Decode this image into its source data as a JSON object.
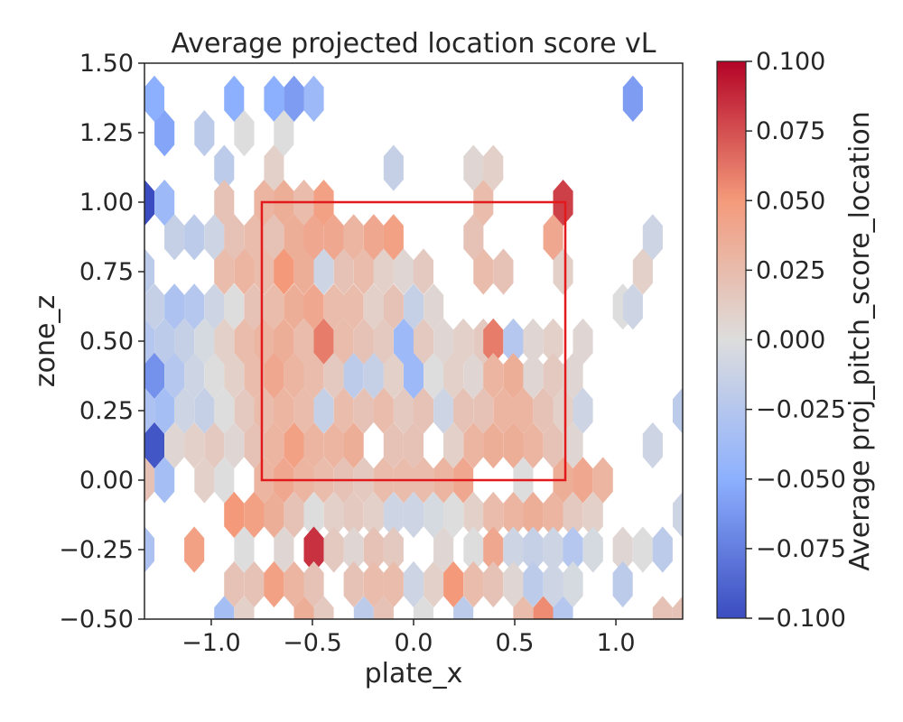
{
  "chart_data": {
    "type": "heatmap",
    "subtype": "hexbin",
    "title": "Average projected location score vL",
    "xlabel": "plate_x",
    "ylabel": "zone_z",
    "xlim": [
      -1.33,
      1.33
    ],
    "ylim": [
      -0.5,
      1.5
    ],
    "grid": false,
    "x_ticks": [
      -1.0,
      -0.5,
      0.0,
      0.5,
      1.0
    ],
    "x_tick_labels": [
      "−1.0",
      "−0.5",
      "0.0",
      "0.5",
      "1.0"
    ],
    "y_ticks": [
      1.5,
      1.25,
      1.0,
      0.75,
      0.5,
      0.25,
      0.0,
      -0.25,
      -0.5
    ],
    "y_tick_labels": [
      "1.50",
      "1.25",
      "1.00",
      "0.75",
      "0.50",
      "0.25",
      "0.00",
      "−0.25",
      "−0.50"
    ],
    "colorbar": {
      "label": "Average proj_pitch_score_location",
      "range": [
        -0.1,
        0.1
      ],
      "ticks": [
        0.1,
        0.075,
        0.05,
        0.025,
        0.0,
        -0.025,
        -0.05,
        -0.075,
        -0.1
      ],
      "tick_labels": [
        "0.100",
        "0.075",
        "0.050",
        "0.025",
        "0.000",
        "−0.025",
        "−0.050",
        "−0.075",
        "−0.100"
      ],
      "colormap": "coolwarm"
    },
    "strike_zone": {
      "x": [
        -0.75,
        0.75
      ],
      "z": [
        0.0,
        1.0
      ],
      "color": "#e31a1c"
    },
    "hex_grid": {
      "dx": 0.0985,
      "dz": 0.1248,
      "x0": -1.33,
      "z0": -0.5
    },
    "rows": [
      {
        "z": 1.372,
        "cells": [
          [
            -1.281,
            -0.05
          ],
          [
            -0.887,
            -0.05
          ],
          [
            -0.69,
            -0.05
          ],
          [
            -0.591,
            -0.06
          ],
          [
            -0.493,
            -0.04
          ],
          [
            1.084,
            -0.06
          ]
        ]
      },
      {
        "z": 1.248,
        "cells": [
          [
            -1.231,
            -0.055
          ],
          [
            -1.034,
            -0.02
          ],
          [
            -0.837,
            0.0
          ],
          [
            -0.641,
            0.0
          ]
        ]
      },
      {
        "z": 1.123,
        "cells": [
          [
            -0.936,
            -0.02
          ],
          [
            -0.69,
            0.01
          ],
          [
            -0.099,
            -0.015
          ],
          [
            0.296,
            0.005
          ],
          [
            0.394,
            0.01
          ]
        ]
      },
      {
        "z": 0.998,
        "cells": [
          [
            -1.33,
            -0.1
          ],
          [
            -1.231,
            -0.04
          ],
          [
            -0.936,
            0.02
          ],
          [
            -0.739,
            0.03
          ],
          [
            -0.641,
            0.035
          ],
          [
            -0.542,
            0.025
          ],
          [
            -0.444,
            0.045
          ],
          [
            0.345,
            0.025
          ],
          [
            0.739,
            0.08
          ]
        ]
      },
      {
        "z": 0.874,
        "cells": [
          [
            -1.182,
            -0.015
          ],
          [
            -1.084,
            -0.02
          ],
          [
            -0.985,
            -0.01
          ],
          [
            -0.887,
            0.02
          ],
          [
            -0.788,
            0.025
          ],
          [
            -0.69,
            0.02
          ],
          [
            -0.591,
            0.035
          ],
          [
            -0.493,
            0.04
          ],
          [
            -0.394,
            0.04
          ],
          [
            -0.296,
            0.03
          ],
          [
            -0.197,
            0.04
          ],
          [
            -0.099,
            0.045
          ],
          [
            0.296,
            0.02
          ],
          [
            0.69,
            0.04
          ],
          [
            1.182,
            -0.01
          ]
        ]
      },
      {
        "z": 0.75,
        "cells": [
          [
            -1.33,
            -0.02
          ],
          [
            -0.936,
            0.025
          ],
          [
            -0.837,
            0.03
          ],
          [
            -0.739,
            0.025
          ],
          [
            -0.641,
            0.05
          ],
          [
            -0.542,
            0.035
          ],
          [
            -0.444,
            -0.01
          ],
          [
            -0.345,
            0.02
          ],
          [
            -0.246,
            0.025
          ],
          [
            -0.148,
            0.01
          ],
          [
            -0.049,
            0.005
          ],
          [
            0.049,
            0.015
          ],
          [
            0.345,
            0.025
          ],
          [
            0.444,
            0.02
          ],
          [
            0.739,
            0.01
          ],
          [
            1.133,
            0.01
          ]
        ]
      },
      {
        "z": 0.624,
        "cells": [
          [
            -1.281,
            -0.015
          ],
          [
            -1.182,
            -0.03
          ],
          [
            -1.084,
            -0.025
          ],
          [
            -0.985,
            -0.01
          ],
          [
            -0.887,
            0.0
          ],
          [
            -0.788,
            0.02
          ],
          [
            -0.69,
            0.025
          ],
          [
            -0.591,
            0.035
          ],
          [
            -0.493,
            0.04
          ],
          [
            -0.394,
            0.025
          ],
          [
            -0.296,
            0.025
          ],
          [
            -0.197,
            0.01
          ],
          [
            -0.099,
            0.02
          ],
          [
            0.0,
            -0.015
          ],
          [
            0.099,
            0.005
          ],
          [
            1.034,
            0.0
          ],
          [
            1.084,
            -0.01
          ]
        ]
      },
      {
        "z": 0.499,
        "cells": [
          [
            -1.33,
            -0.025
          ],
          [
            -1.231,
            -0.02
          ],
          [
            -1.133,
            -0.015
          ],
          [
            -1.034,
            -0.005
          ],
          [
            -0.936,
            0.01
          ],
          [
            -0.837,
            0.025
          ],
          [
            -0.739,
            0.03
          ],
          [
            -0.641,
            0.035
          ],
          [
            -0.542,
            0.025
          ],
          [
            -0.444,
            0.06
          ],
          [
            -0.345,
            0.025
          ],
          [
            -0.246,
            0.02
          ],
          [
            -0.148,
            0.015
          ],
          [
            -0.049,
            -0.04
          ],
          [
            0.049,
            0.015
          ],
          [
            0.148,
            0.005
          ],
          [
            0.246,
            0.01
          ],
          [
            0.345,
            0.015
          ],
          [
            0.394,
            0.06
          ],
          [
            0.493,
            -0.025
          ],
          [
            0.591,
            0.005
          ],
          [
            0.69,
            0.01
          ],
          [
            0.837,
            0.005
          ]
        ]
      },
      {
        "z": 0.375,
        "cells": [
          [
            -1.281,
            -0.065
          ],
          [
            -1.182,
            -0.025
          ],
          [
            -1.084,
            -0.01
          ],
          [
            -0.985,
            0.0
          ],
          [
            -0.887,
            0.01
          ],
          [
            -0.788,
            0.025
          ],
          [
            -0.69,
            0.04
          ],
          [
            -0.591,
            0.03
          ],
          [
            -0.493,
            0.025
          ],
          [
            -0.394,
            0.015
          ],
          [
            -0.296,
            -0.02
          ],
          [
            -0.197,
            -0.015
          ],
          [
            -0.099,
            0.01
          ],
          [
            0.0,
            -0.04
          ],
          [
            0.099,
            0.0
          ],
          [
            0.197,
            0.01
          ],
          [
            0.296,
            0.005
          ],
          [
            0.394,
            0.03
          ],
          [
            0.493,
            0.035
          ],
          [
            0.591,
            0.005
          ],
          [
            0.69,
            0.015
          ],
          [
            0.788,
            0.005
          ]
        ]
      },
      {
        "z": 0.25,
        "cells": [
          [
            -1.33,
            -0.03
          ],
          [
            -1.231,
            -0.035
          ],
          [
            -1.133,
            -0.01
          ],
          [
            -1.034,
            -0.015
          ],
          [
            -0.936,
            0.0
          ],
          [
            -0.837,
            0.015
          ],
          [
            -0.739,
            0.025
          ],
          [
            -0.641,
            0.03
          ],
          [
            -0.542,
            0.025
          ],
          [
            -0.444,
            -0.015
          ],
          [
            -0.345,
            0.025
          ],
          [
            -0.246,
            0.02
          ],
          [
            -0.148,
            0.025
          ],
          [
            -0.049,
            0.015
          ],
          [
            0.049,
            0.02
          ],
          [
            0.148,
            -0.01
          ],
          [
            0.246,
            0.02
          ],
          [
            0.345,
            0.02
          ],
          [
            0.444,
            0.03
          ],
          [
            0.542,
            0.03
          ],
          [
            0.641,
            0.02
          ],
          [
            0.739,
            0.01
          ],
          [
            0.837,
            -0.01
          ],
          [
            1.33,
            -0.02
          ]
        ]
      },
      {
        "z": 0.125,
        "cells": [
          [
            -1.281,
            -0.095
          ],
          [
            -1.182,
            0.005
          ],
          [
            -1.084,
            0.01
          ],
          [
            -0.985,
            0.015
          ],
          [
            -0.887,
            0.005
          ],
          [
            -0.788,
            0.02
          ],
          [
            -0.69,
            0.03
          ],
          [
            -0.591,
            0.045
          ],
          [
            -0.493,
            0.03
          ],
          [
            -0.394,
            0.03
          ],
          [
            -0.296,
            0.035
          ],
          [
            -0.099,
            0.02
          ],
          [
            0.0,
            0.02
          ],
          [
            0.197,
            0.01
          ],
          [
            0.296,
            0.03
          ],
          [
            0.394,
            0.035
          ],
          [
            0.493,
            0.035
          ],
          [
            0.591,
            0.03
          ],
          [
            0.69,
            0.02
          ],
          [
            0.788,
            0.005
          ],
          [
            1.182,
            -0.01
          ]
        ]
      },
      {
        "z": 0.0,
        "cells": [
          [
            -1.33,
            0.02
          ],
          [
            -1.231,
            -0.035
          ],
          [
            -1.034,
            0.01
          ],
          [
            -0.936,
            0.0
          ],
          [
            -0.739,
            0.03
          ],
          [
            -0.641,
            0.04
          ],
          [
            -0.542,
            0.03
          ],
          [
            -0.444,
            0.025
          ],
          [
            -0.345,
            0.02
          ],
          [
            -0.246,
            0.015
          ],
          [
            -0.148,
            0.025
          ],
          [
            -0.049,
            0.025
          ],
          [
            0.049,
            0.025
          ],
          [
            0.148,
            0.03
          ],
          [
            0.246,
            0.04
          ],
          [
            0.542,
            0.0
          ],
          [
            0.739,
            0.035
          ],
          [
            0.837,
            0.04
          ],
          [
            0.936,
            0.03
          ]
        ]
      },
      {
        "z": -0.125,
        "cells": [
          [
            -0.887,
            0.05
          ],
          [
            -0.788,
            0.045
          ],
          [
            -0.69,
            0.035
          ],
          [
            -0.591,
            0.02
          ],
          [
            -0.493,
            0.0
          ],
          [
            -0.394,
            0.01
          ],
          [
            -0.296,
            0.015
          ],
          [
            -0.197,
            0.01
          ],
          [
            -0.099,
            -0.01
          ],
          [
            0.0,
            -0.01
          ],
          [
            0.099,
            -0.005
          ],
          [
            0.197,
            0.0
          ],
          [
            0.296,
            0.01
          ],
          [
            0.394,
            0.025
          ],
          [
            0.493,
            0.03
          ],
          [
            0.591,
            0.035
          ],
          [
            0.69,
            0.03
          ],
          [
            0.788,
            0.015
          ],
          [
            0.887,
            0.01
          ],
          [
            1.33,
            -0.01
          ]
        ]
      },
      {
        "z": -0.25,
        "cells": [
          [
            -1.33,
            -0.03
          ],
          [
            -1.084,
            0.045
          ],
          [
            -0.837,
            0.0
          ],
          [
            -0.641,
            0.005
          ],
          [
            -0.493,
            0.085
          ],
          [
            -0.394,
            0.015
          ],
          [
            -0.296,
            0.005
          ],
          [
            -0.197,
            0.02
          ],
          [
            -0.099,
            0.015
          ],
          [
            0.148,
            0.005
          ],
          [
            0.296,
            0.0
          ],
          [
            0.394,
            0.04
          ],
          [
            0.493,
            -0.01
          ],
          [
            0.591,
            -0.015
          ],
          [
            0.69,
            -0.01
          ],
          [
            0.788,
            -0.025
          ],
          [
            0.887,
            -0.005
          ],
          [
            1.034,
            0.005
          ],
          [
            1.133,
            0.0
          ],
          [
            1.231,
            -0.02
          ]
        ]
      },
      {
        "z": -0.375,
        "cells": [
          [
            -0.887,
            0.02
          ],
          [
            -0.788,
            0.02
          ],
          [
            -0.69,
            0.045
          ],
          [
            -0.591,
            0.03
          ],
          [
            -0.493,
            0.02
          ],
          [
            -0.296,
            0.02
          ],
          [
            -0.197,
            0.025
          ],
          [
            -0.099,
            0.025
          ],
          [
            0.0,
            -0.01
          ],
          [
            0.099,
            0.01
          ],
          [
            0.197,
            0.05
          ],
          [
            0.296,
            0.025
          ],
          [
            0.394,
            0.02
          ],
          [
            0.493,
            0.005
          ],
          [
            0.591,
            -0.02
          ],
          [
            0.69,
            -0.01
          ],
          [
            0.788,
            -0.005
          ],
          [
            1.034,
            -0.02
          ]
        ]
      },
      {
        "z": -0.5,
        "cells": [
          [
            -0.936,
            -0.035
          ],
          [
            -0.837,
            0.01
          ],
          [
            -0.542,
            0.035
          ],
          [
            -0.444,
            0.015
          ],
          [
            -0.246,
            -0.02
          ],
          [
            -0.148,
            0.02
          ],
          [
            0.049,
            0.0
          ],
          [
            0.246,
            -0.02
          ],
          [
            0.542,
            0.025
          ],
          [
            0.641,
            0.055
          ],
          [
            0.739,
            -0.025
          ],
          [
            1.231,
            0.02
          ],
          [
            1.33,
            0.02
          ]
        ]
      }
    ]
  }
}
